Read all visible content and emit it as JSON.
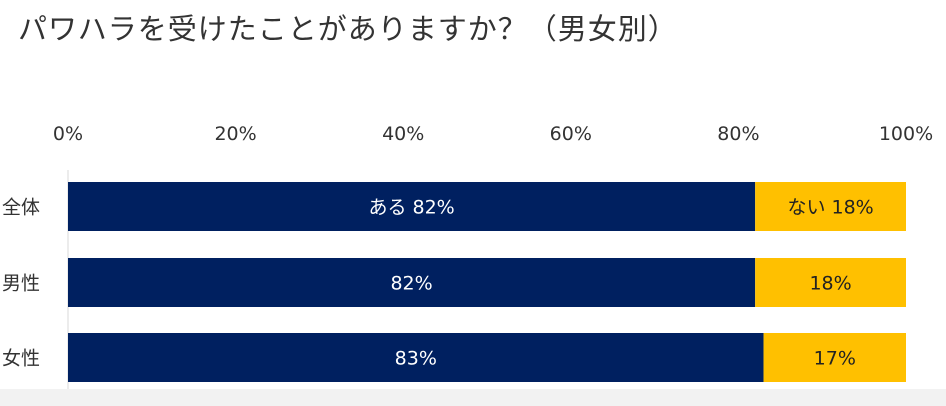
{
  "title": "パワハラを受けたことがありますか？（男女別）",
  "chart_data": {
    "type": "bar",
    "stacked": true,
    "orientation": "horizontal",
    "title": "パワハラを受けたことがありますか？（男女別）",
    "categories": [
      "全体",
      "男性",
      "女性"
    ],
    "series": [
      {
        "name": "ある",
        "values": [
          82,
          82,
          83
        ],
        "color": "#002060",
        "labels": [
          "ある 82%",
          "82%",
          "83%"
        ]
      },
      {
        "name": "ない",
        "values": [
          18,
          18,
          17
        ],
        "color": "#FFC000",
        "labels": [
          "ない 18%",
          "18%",
          "17%"
        ]
      }
    ],
    "xlim": [
      0,
      100
    ],
    "xticks": [
      "0%",
      "20%",
      "40%",
      "60%",
      "80%",
      "100%"
    ],
    "xaxis_position": "top",
    "grid": false
  }
}
